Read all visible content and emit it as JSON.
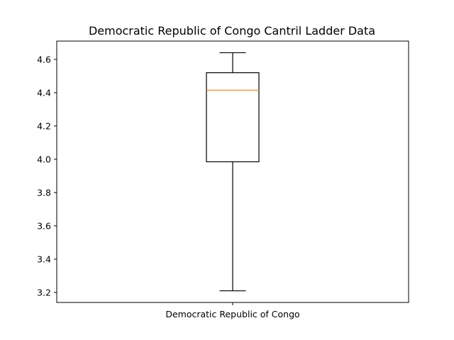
{
  "chart_data": {
    "type": "box",
    "title": "Democratic Republic of Congo Cantril Ladder Data",
    "xlabel": "",
    "ylabel": "",
    "categories": [
      "Democratic Republic of Congo"
    ],
    "boxes": [
      {
        "category": "Democratic Republic of Congo",
        "whisker_low": 3.21,
        "q1": 3.985,
        "median": 4.415,
        "q3": 4.52,
        "whisker_high": 4.64
      }
    ],
    "ylim": [
      3.14,
      4.71
    ],
    "yticks": [
      3.2,
      3.4,
      3.6,
      3.8,
      4.0,
      4.2,
      4.4,
      4.6
    ],
    "ytick_labels": [
      "3.2",
      "3.4",
      "3.6",
      "3.8",
      "4.0",
      "4.2",
      "4.4",
      "4.6"
    ],
    "grid": false,
    "colors": {
      "box": "#000000",
      "median": "#ff7f0e",
      "axes": "#000000"
    }
  }
}
